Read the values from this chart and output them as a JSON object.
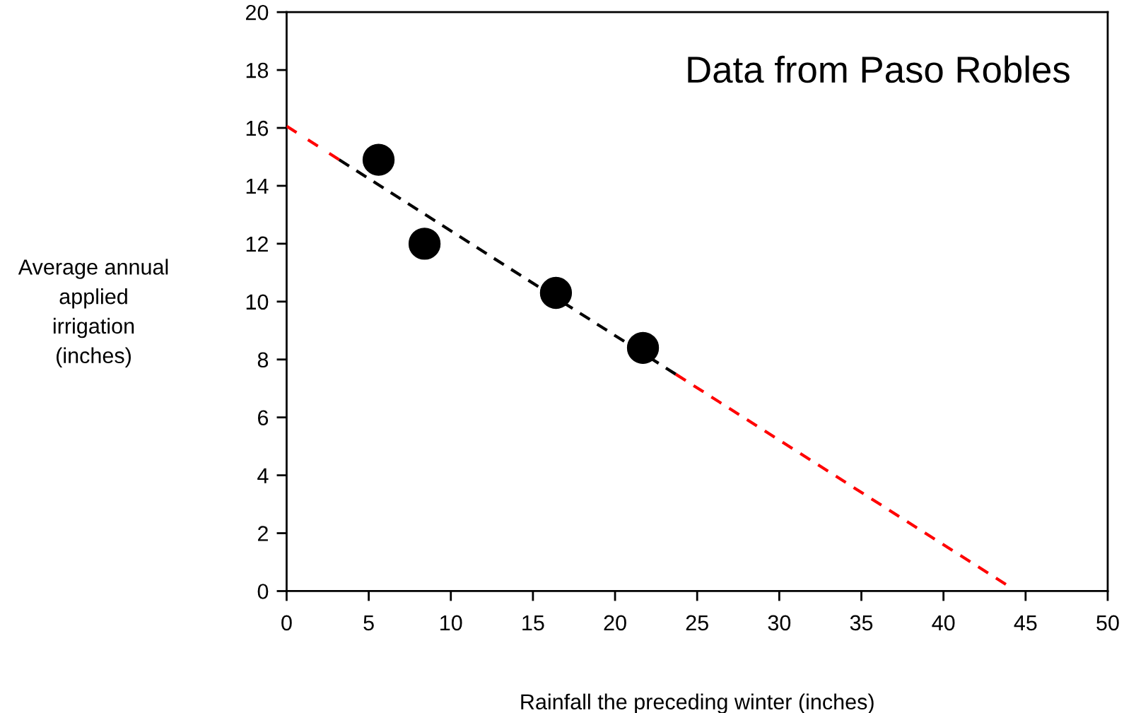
{
  "chart_data": {
    "type": "scatter",
    "xlabel": "Rainfall the preceding winter (inches)",
    "ylabel": "Average annual\napplied\nirrigation\n(inches)",
    "annotations": [
      "Data from Paso Robles"
    ],
    "xlim": [
      0,
      50
    ],
    "xticks": [
      0,
      5,
      10,
      15,
      20,
      25,
      30,
      35,
      40,
      45,
      50
    ],
    "ylim": [
      0,
      20
    ],
    "yticks": [
      0,
      2,
      4,
      6,
      8,
      10,
      12,
      14,
      16,
      18,
      20
    ],
    "grid": false,
    "legend": false,
    "series": [
      {
        "type": "line",
        "color": "#ff0000",
        "line_style": "dashed",
        "marker": "none",
        "x": [
          0,
          3.2
        ],
        "values": [
          16.06,
          14.9
        ]
      },
      {
        "type": "line",
        "color": "#000000",
        "line_style": "dashed",
        "marker": "none",
        "x": [
          3.2,
          23.7
        ],
        "values": [
          14.9,
          7.49
        ]
      },
      {
        "type": "line",
        "color": "#ff0000",
        "line_style": "dashed",
        "marker": "none",
        "x": [
          23.7,
          43.8
        ],
        "values": [
          7.49,
          0.23
        ]
      },
      {
        "color": "#000000",
        "marker": "circle",
        "x": [
          5.6,
          8.4,
          16.4,
          21.7
        ],
        "values": [
          14.9,
          12.0,
          10.3,
          8.4
        ]
      }
    ]
  }
}
